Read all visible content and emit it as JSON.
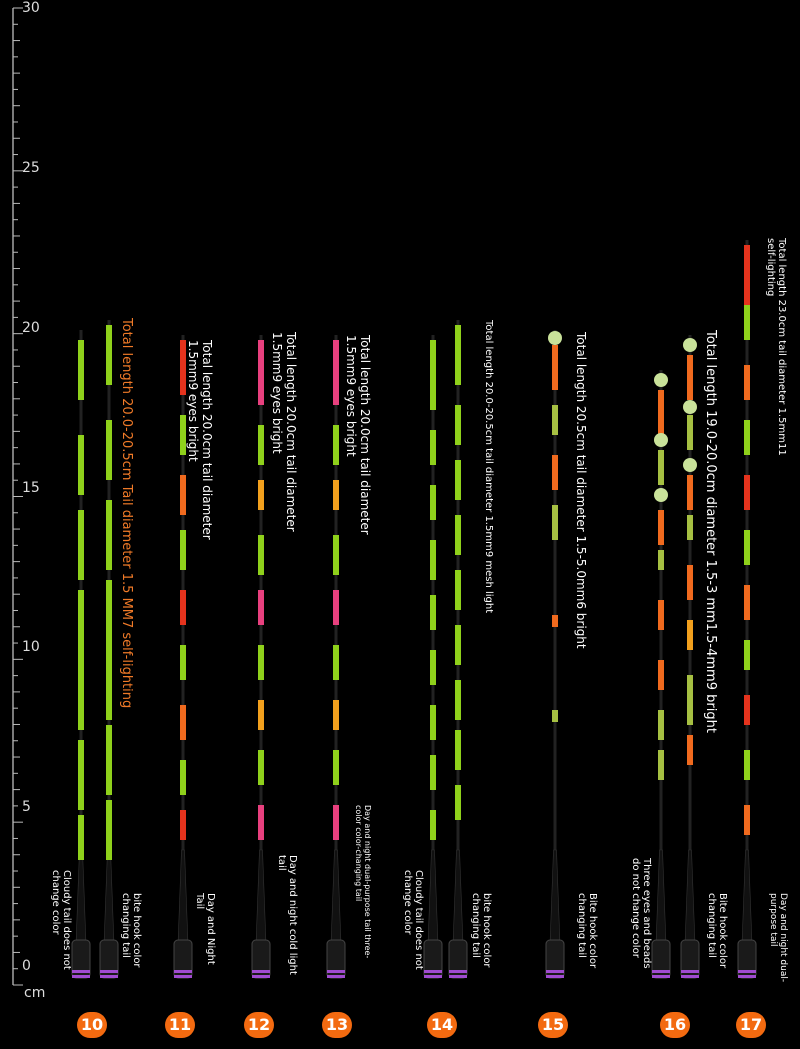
{
  "ruler": {
    "unit": "cm",
    "labels": [
      "30",
      "25",
      "20",
      "15",
      "10",
      "5",
      "0"
    ]
  },
  "floats": [
    {
      "number": "10",
      "spec": "",
      "note": "Cloudy tail does not change color"
    },
    {
      "number": "",
      "spec": "Total length 20.0-20.5cm Tail diameter 1.5 MM7 self-lighting",
      "note": "bite hook color changing tail"
    },
    {
      "number": "11",
      "spec": "Total length 20.0cm tail diameter 1.5mm9 eyes bright",
      "note": "Day and Night Tail"
    },
    {
      "number": "12",
      "spec": "Total length 20.0cm tail diameter 1.5mm9 eyes bright",
      "note": "Day and night cold light tail"
    },
    {
      "number": "13",
      "spec": "Total length 20.0cm tail diameter 1.5mm9 eyes bright",
      "note": "Day and night dual-purpose tail three-color color-changing tail"
    },
    {
      "number": "14",
      "spec": "",
      "note": "Cloudy tail does not change color"
    },
    {
      "number": "",
      "spec": "Total length 20.0-20.5cm tail diameter 1.5mm9 mesh light",
      "note": "bite hook color changing tail"
    },
    {
      "number": "15",
      "spec": "Total length 20.5cm tail diameter 1.5-5.0mm6 bright",
      "note": "Bite hook color changing tail"
    },
    {
      "number": "16",
      "spec": "",
      "note": "Three eyes and beads do not change color"
    },
    {
      "number": "",
      "spec": "Total length 19.0-20.0cm diameter 1.5-3 mm1.5-4mm9 bright",
      "note": "Bite hook color changing tail"
    },
    {
      "number": "17",
      "spec": "Total length 23.0cm tail diameter 1.5mm11 self-lighting",
      "note": "Day and night dual-purpose tail"
    }
  ],
  "colors": {
    "green": "#8fd11b",
    "orange": "#f06a1e",
    "amber": "#f2a01d",
    "pink": "#e8407e",
    "red": "#e5331d",
    "olive": "#a6c042",
    "badge": "#f36a10",
    "accent_text": "#f07a28"
  }
}
